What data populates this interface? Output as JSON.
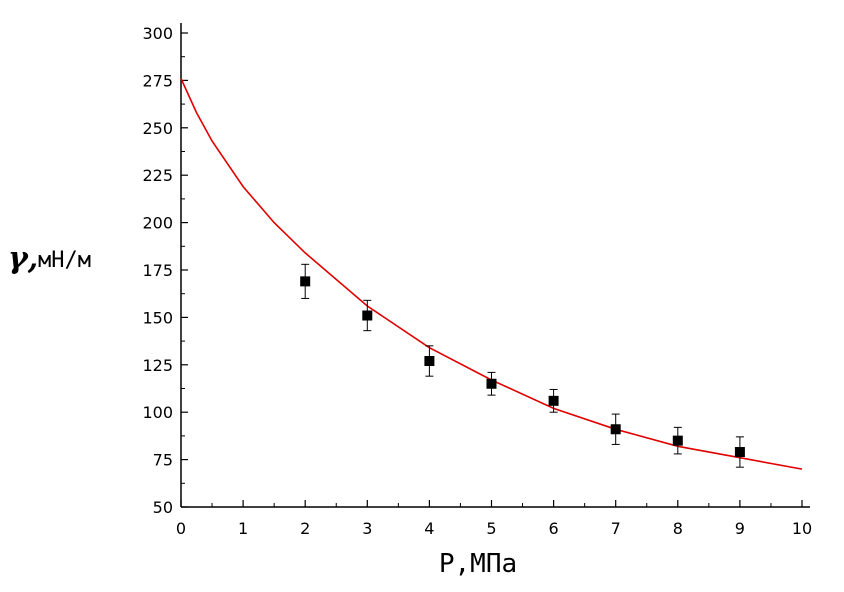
{
  "chart_data": {
    "type": "scatter",
    "title": "",
    "xlabel": "P,МПа",
    "ylabel_symbol": "γ,",
    "ylabel_unit": "мН/м",
    "xlim": [
      0,
      10
    ],
    "ylim": [
      50,
      300
    ],
    "x_ticks": [
      "0",
      "1",
      "2",
      "3",
      "4",
      "5",
      "6",
      "7",
      "8",
      "9",
      "10"
    ],
    "y_ticks": [
      "50",
      "75",
      "100",
      "125",
      "150",
      "175",
      "200",
      "225",
      "250",
      "275",
      "300"
    ],
    "grid": false,
    "series": [
      {
        "marker": "square",
        "color": "#000000",
        "x": [
          2,
          3,
          4,
          5,
          6,
          7,
          8,
          9
        ],
        "y": [
          169,
          151,
          127,
          115,
          106,
          91,
          85,
          79
        ],
        "error_low": [
          160,
          143,
          119,
          109,
          100,
          83,
          78,
          71
        ],
        "error_high": [
          178,
          159,
          135,
          121,
          112,
          99,
          92,
          87
        ]
      },
      {
        "style": "line",
        "color": "#e00000",
        "x": [
          0,
          0.25,
          0.5,
          1,
          1.5,
          2,
          3,
          4,
          5,
          6,
          7,
          8,
          9,
          10
        ],
        "y": [
          276,
          258,
          243,
          219,
          200,
          184,
          156,
          134,
          117,
          102,
          91,
          82,
          76,
          70
        ]
      }
    ]
  }
}
